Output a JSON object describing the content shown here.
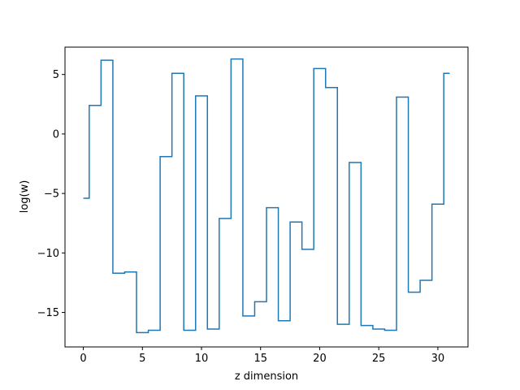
{
  "chart_data": {
    "type": "line",
    "drawstyle": "steps-mid",
    "title": "",
    "xlabel": "z dimension",
    "ylabel": "log(w)",
    "xlim": [
      -1.55,
      32.55
    ],
    "ylim": [
      -17.9,
      7.3
    ],
    "grid": false,
    "legend": "none",
    "series": [
      {
        "name": "",
        "color": "#1f77b4",
        "x": [
          0,
          1,
          2,
          3,
          4,
          5,
          6,
          7,
          8,
          9,
          10,
          11,
          12,
          13,
          14,
          15,
          16,
          17,
          18,
          19,
          20,
          21,
          22,
          23,
          24,
          25,
          26,
          27,
          28,
          29,
          30,
          31
        ],
        "y": [
          -5.4,
          2.4,
          6.2,
          -11.7,
          -11.6,
          -16.7,
          -16.5,
          -1.9,
          5.1,
          -16.5,
          3.2,
          -16.4,
          -7.1,
          6.3,
          -15.3,
          -14.1,
          -6.2,
          -15.7,
          -7.4,
          -9.7,
          5.5,
          3.9,
          -16.0,
          -2.4,
          -16.1,
          -16.4,
          -16.5,
          3.1,
          -13.3,
          -12.3,
          -5.9,
          5.1
        ]
      }
    ],
    "xticks": [
      0,
      5,
      10,
      15,
      20,
      25,
      30
    ],
    "xtick_labels": [
      "0",
      "5",
      "10",
      "15",
      "20",
      "25",
      "30"
    ],
    "yticks": [
      -15,
      -10,
      -5,
      0,
      5
    ],
    "ytick_labels": [
      "−15",
      "−10",
      "−5",
      "0",
      "5"
    ]
  }
}
